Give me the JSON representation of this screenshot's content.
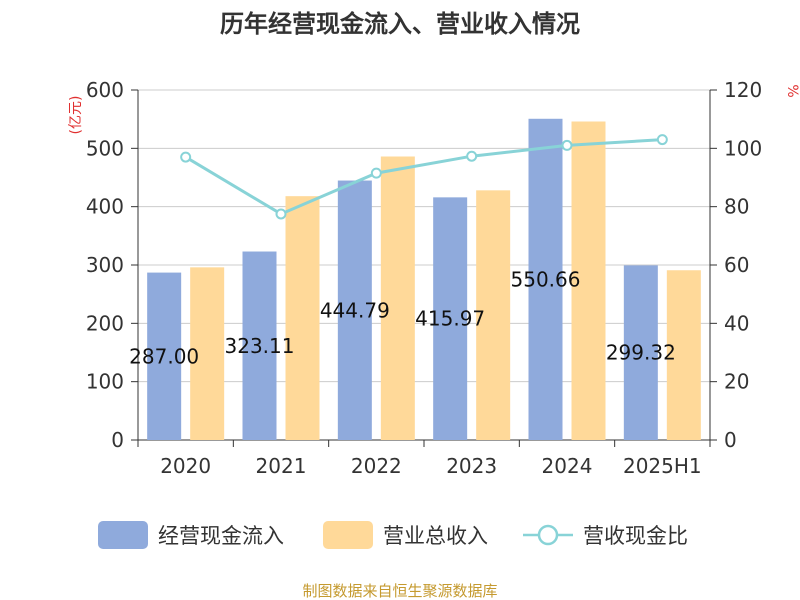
{
  "chart_data": {
    "type": "bar",
    "title": "历年经营现金流入、营业收入情况",
    "categories": [
      "2020",
      "2021",
      "2022",
      "2023",
      "2024",
      "2025H1"
    ],
    "y_unit_left": "(亿元)",
    "y_unit_right": "%",
    "ylim_left": [
      0,
      600
    ],
    "ylim_right": [
      0,
      120
    ],
    "yticks_left": [
      "0",
      "100",
      "200",
      "300",
      "400",
      "500",
      "600"
    ],
    "yticks_right": [
      "0",
      "20",
      "40",
      "60",
      "80",
      "100",
      "120"
    ],
    "grid": true,
    "legend_position": "bottom",
    "series": [
      {
        "name": "经营现金流入",
        "type": "bar",
        "axis": "left",
        "color": "#8faadc",
        "values": [
          287.0,
          323.11,
          444.79,
          415.97,
          550.66,
          299.32
        ],
        "labels": [
          "287.00",
          "323.11",
          "444.79",
          "415.97",
          "550.66",
          "299.32"
        ]
      },
      {
        "name": "营业总收入",
        "type": "bar",
        "axis": "left",
        "color": "#ffd999",
        "values": [
          296,
          418,
          486,
          428,
          546,
          291
        ]
      },
      {
        "name": "营收现金比",
        "type": "line",
        "axis": "right",
        "color": "#88d3d7",
        "values": [
          97,
          77.5,
          91.5,
          97.3,
          101,
          103
        ]
      }
    ],
    "source": "制图数据来自恒生聚源数据库",
    "unit_color": "#e03030",
    "source_color": "#c59a2f"
  }
}
